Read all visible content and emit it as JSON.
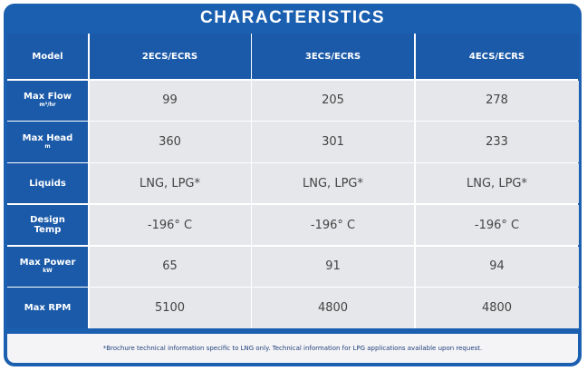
{
  "title": "CHARACTERISTICS",
  "table": {
    "header": [
      "Model",
      "2ECS/ECRS",
      "3ECS/ECRS",
      "4ECS/ECRS"
    ],
    "rows": [
      {
        "label": "Max Flow",
        "unit": "m³/hr",
        "values": [
          99,
          205,
          278
        ]
      },
      {
        "label": "Max Head",
        "unit": "m",
        "values": [
          360,
          301,
          233
        ]
      },
      {
        "label": "Liquids",
        "values": [
          "LNG, LPG*",
          "LNG, LPG*",
          "LNG, LPG*"
        ]
      },
      {
        "label": "Design Temp",
        "values": [
          "-196° C",
          "-196° C",
          "-196° C"
        ]
      },
      {
        "label": "Max Power",
        "unit": "kW",
        "values": [
          65,
          91,
          94
        ]
      },
      {
        "label": "Max RPM",
        "values": [
          5100,
          4800,
          4800
        ]
      }
    ]
  },
  "footnote": "*Brochure technical information specific to LNG only. Technical information for LPG applications available upon request."
}
